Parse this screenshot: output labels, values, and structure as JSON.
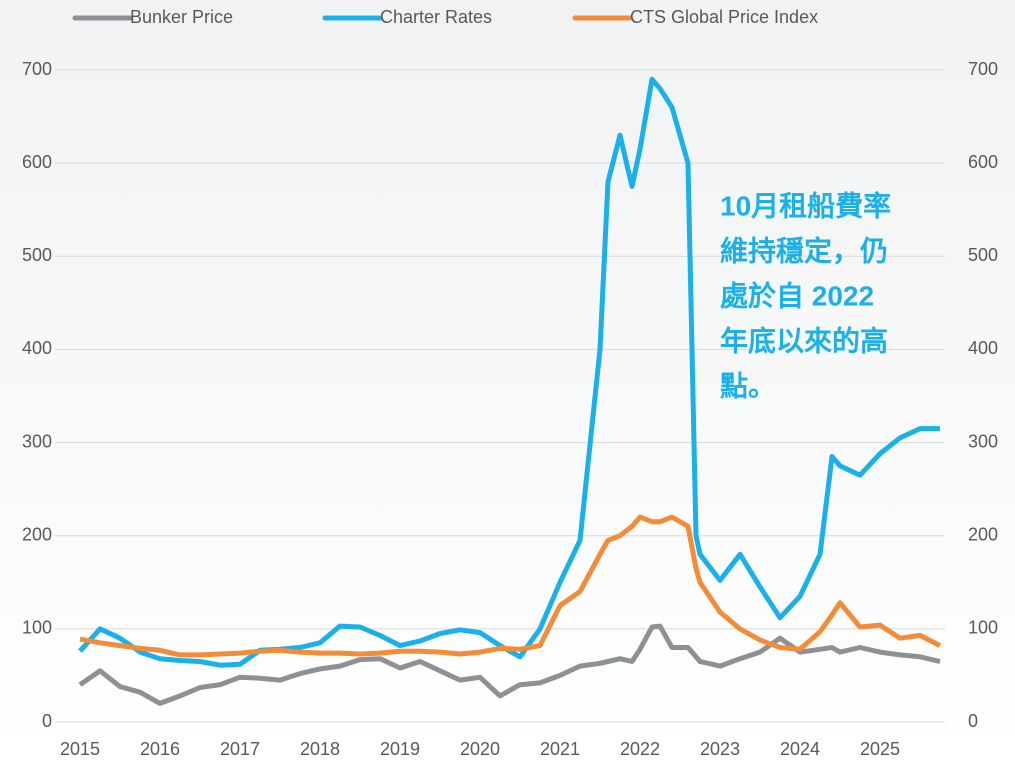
{
  "chart_data": {
    "type": "line",
    "x": [
      2015,
      2015.25,
      2015.5,
      2015.75,
      2016,
      2016.25,
      2016.5,
      2016.75,
      2017,
      2017.25,
      2017.5,
      2017.75,
      2018,
      2018.25,
      2018.5,
      2018.75,
      2019,
      2019.25,
      2019.5,
      2019.75,
      2020,
      2020.25,
      2020.5,
      2020.75,
      2021,
      2021.25,
      2021.5,
      2021.6,
      2021.75,
      2021.9,
      2022,
      2022.15,
      2022.25,
      2022.4,
      2022.6,
      2022.7,
      2022.75,
      2023,
      2023.25,
      2023.5,
      2023.75,
      2024,
      2024.25,
      2024.4,
      2024.5,
      2024.75,
      2025,
      2025.25,
      2025.5,
      2025.75
    ],
    "series": [
      {
        "name": "Bunker Price",
        "color": "#8c9196",
        "values": [
          40,
          55,
          38,
          32,
          20,
          28,
          37,
          40,
          48,
          47,
          45,
          52,
          57,
          60,
          67,
          68,
          58,
          65,
          55,
          45,
          48,
          28,
          40,
          42,
          50,
          60,
          63,
          65,
          68,
          65,
          78,
          102,
          103,
          80,
          80,
          70,
          65,
          60,
          68,
          75,
          90,
          75,
          78,
          80,
          75,
          80,
          75,
          72,
          70,
          65
        ]
      },
      {
        "name": "Charter Rates",
        "color": "#1ab0ea",
        "values": [
          76,
          100,
          90,
          75,
          68,
          66,
          65,
          61,
          62,
          77,
          78,
          80,
          85,
          103,
          102,
          93,
          82,
          87,
          95,
          99,
          96,
          82,
          70,
          100,
          150,
          195,
          400,
          580,
          630,
          575,
          615,
          690,
          680,
          660,
          600,
          200,
          180,
          152,
          180,
          145,
          112,
          135,
          180,
          285,
          275,
          265,
          288,
          305,
          315,
          315
        ]
      },
      {
        "name": "CTS Global Price Index",
        "color": "#f28c38",
        "values": [
          89,
          85,
          82,
          79,
          77,
          72,
          72,
          73,
          74,
          76,
          77,
          75,
          74,
          74,
          73,
          74,
          76,
          76,
          75,
          73,
          75,
          79,
          78,
          82,
          125,
          140,
          180,
          195,
          200,
          210,
          220,
          215,
          215,
          220,
          210,
          165,
          150,
          118,
          100,
          88,
          80,
          78,
          97,
          115,
          128,
          102,
          104,
          90,
          93,
          82
        ]
      }
    ],
    "xlim": [
      2015,
      2025.75
    ],
    "xticks": [
      2015,
      2016,
      2017,
      2018,
      2019,
      2020,
      2021,
      2022,
      2023,
      2024,
      2025
    ],
    "ylim": [
      0,
      700
    ],
    "yticks": [
      0,
      100,
      200,
      300,
      400,
      500,
      600,
      700
    ],
    "y2lim": [
      0,
      700
    ],
    "y2ticks": [
      0,
      100,
      200,
      300,
      400,
      500,
      600,
      700
    ],
    "grid": true,
    "legend": "top",
    "annotation": {
      "lines": [
        "10月租船費率",
        "維持穩定，仍",
        "處於自 2022",
        "年底以來的高",
        "點。"
      ],
      "color": "#1ab0ea"
    }
  }
}
